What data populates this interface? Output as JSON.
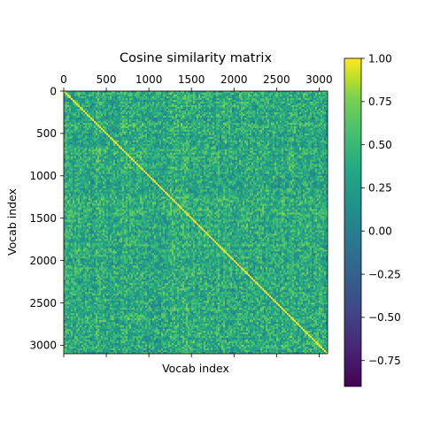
{
  "chart_data": {
    "type": "heatmap",
    "title": "Cosine similarity matrix",
    "xlabel": "Vocab index",
    "ylabel": "Vocab index",
    "matrix_size": 3100,
    "xlim": [
      0,
      3100
    ],
    "ylim": [
      3100,
      0
    ],
    "x_ticks": [
      0,
      500,
      1000,
      1500,
      2000,
      2500,
      3000
    ],
    "x_tick_labels": [
      "0",
      "500",
      "1000",
      "1500",
      "2000",
      "2500",
      "3000"
    ],
    "x_tick_label_position": "top",
    "y_ticks": [
      0,
      500,
      1000,
      1500,
      2000,
      2500,
      3000
    ],
    "y_tick_labels": [
      "0",
      "500",
      "1000",
      "1500",
      "2000",
      "2500",
      "3000"
    ],
    "diagonal_value": 1.0,
    "typical_value_range": [
      -0.25,
      0.75
    ],
    "colormap": "viridis",
    "colorbar": {
      "vmin": -0.9,
      "vmax": 1.0,
      "ticks": [
        1.0,
        0.75,
        0.5,
        0.25,
        0.0,
        -0.25,
        -0.5,
        -0.75
      ],
      "tick_labels": [
        "1.00",
        "0.75",
        "0.50",
        "0.25",
        "0.00",
        "−0.25",
        "−0.50",
        "−0.75"
      ],
      "position": "right"
    },
    "grid": false
  }
}
